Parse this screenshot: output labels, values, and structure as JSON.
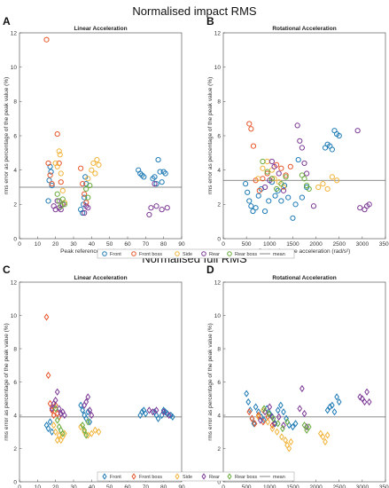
{
  "titles": {
    "impact": "Normalised impact RMS",
    "full": "Normalised full RMS"
  },
  "colors": {
    "Front": "#1f7bb5",
    "Front boss": "#e8562a",
    "Side": "#f2b43a",
    "Rear": "#7c3a96",
    "Rear boss": "#6aab3c",
    "mean": "#666666"
  },
  "chart_data": [
    {
      "letter": "A",
      "title": "Linear Acceleration",
      "type": "scatter",
      "marker": "circle",
      "xlabel": "Peak reference acceleration (g)",
      "ylabel": "rms error as percentage of the peak value (%)",
      "xlim": [
        0,
        90
      ],
      "ylim": [
        0,
        12
      ],
      "xticks": [
        "0",
        "10",
        "20",
        "30",
        "40",
        "50",
        "60",
        "70",
        "80",
        "90"
      ],
      "yticks": [
        "0",
        "2",
        "4",
        "6",
        "8",
        "10",
        "12"
      ],
      "mean": 3.0,
      "series": [
        {
          "name": "Front",
          "x": [
            16,
            16.5,
            17,
            17.5,
            18,
            34,
            35,
            35.5,
            36,
            36.5,
            37,
            66,
            67,
            68,
            69,
            74,
            75,
            76,
            77,
            78,
            79,
            80,
            81
          ],
          "y": [
            2.2,
            3.4,
            4.2,
            3.9,
            3.1,
            1.7,
            1.5,
            2.0,
            2.4,
            3.6,
            3.2,
            4.0,
            3.8,
            3.7,
            3.6,
            3.5,
            3.6,
            3.2,
            4.6,
            3.9,
            3.3,
            3.9,
            3.8
          ]
        },
        {
          "name": "Front boss",
          "x": [
            15,
            16,
            17,
            18,
            21,
            22,
            23,
            34,
            35,
            36,
            37
          ],
          "y": [
            11.6,
            4.4,
            3.7,
            3.2,
            6.1,
            4.4,
            3.3,
            4.1,
            3.2,
            2.6,
            2.1
          ]
        },
        {
          "name": "Side",
          "x": [
            20,
            21,
            22,
            22.5,
            23,
            24,
            25,
            38,
            40,
            41,
            42,
            43,
            44
          ],
          "y": [
            4.4,
            4.2,
            5.1,
            4.9,
            3.8,
            2.8,
            2.1,
            3.5,
            4.0,
            4.4,
            3.8,
            4.6,
            4.3
          ]
        },
        {
          "name": "Rear",
          "x": [
            19,
            20,
            21,
            22,
            23,
            24,
            36,
            37,
            38,
            72,
            73,
            75,
            76,
            79,
            82
          ],
          "y": [
            1.9,
            1.7,
            2.2,
            1.8,
            1.7,
            2.0,
            1.5,
            1.9,
            1.8,
            1.4,
            1.8,
            3.2,
            1.9,
            1.7,
            1.8
          ]
        },
        {
          "name": "Rear boss",
          "x": [
            21,
            22,
            23,
            24,
            25,
            37,
            38,
            39
          ],
          "y": [
            2.6,
            2.2,
            1.9,
            2.3,
            2.0,
            2.9,
            2.4,
            3.1
          ]
        }
      ]
    },
    {
      "letter": "B",
      "title": "Rotational Acceleration",
      "type": "scatter",
      "marker": "circle",
      "xlabel": "Peak reference acceleration (rad/s²)",
      "ylabel": "rms error as percentage of the peak value (%)",
      "xlim": [
        0,
        3500
      ],
      "ylim": [
        0,
        12
      ],
      "xticks": [
        "0",
        "500",
        "1000",
        "1500",
        "2000",
        "2500",
        "3000",
        "3500"
      ],
      "yticks": [
        "0",
        "2",
        "4",
        "6",
        "8",
        "10",
        "12"
      ],
      "mean": 3.4,
      "series": [
        {
          "name": "Front",
          "x": [
            480,
            520,
            560,
            600,
            640,
            700,
            760,
            820,
            900,
            980,
            1050,
            1120,
            1180,
            1250,
            1320,
            1400,
            1500,
            1560,
            1620,
            1700,
            1800,
            2200,
            2250,
            2300,
            2350,
            2400,
            2450,
            2500
          ],
          "y": [
            3.2,
            2.7,
            2.2,
            1.9,
            1.6,
            1.8,
            2.5,
            2.9,
            1.6,
            2.2,
            3.3,
            2.5,
            2.8,
            2.2,
            3.1,
            2.4,
            1.2,
            2.0,
            4.6,
            2.4,
            3.0,
            5.3,
            5.5,
            5.4,
            5.2,
            6.3,
            6.1,
            6.0
          ]
        },
        {
          "name": "Front boss",
          "x": [
            560,
            600,
            650,
            700,
            780,
            850,
            950,
            1050,
            1150,
            1250,
            1350,
            1450
          ],
          "y": [
            6.7,
            6.4,
            5.4,
            3.4,
            2.8,
            3.5,
            3.8,
            3.5,
            4.3,
            4.1,
            3.7,
            4.2
          ]
        },
        {
          "name": "Side",
          "x": [
            750,
            850,
            950,
            1050,
            1100,
            1200,
            1300,
            2050,
            2150,
            2250,
            2350,
            2450
          ],
          "y": [
            3.5,
            4.1,
            4.5,
            4.0,
            3.5,
            3.3,
            3.0,
            3.0,
            3.2,
            2.9,
            3.6,
            3.4
          ]
        },
        {
          "name": "Rear",
          "x": [
            900,
            1000,
            1050,
            1100,
            1200,
            1300,
            1600,
            1650,
            1700,
            1750,
            1800,
            1950,
            2900,
            2950,
            3050,
            3100,
            3150
          ],
          "y": [
            3.0,
            3.4,
            4.5,
            4.2,
            3.8,
            2.8,
            6.6,
            5.7,
            5.3,
            4.4,
            3.8,
            1.9,
            6.3,
            1.8,
            1.7,
            1.9,
            2.0
          ]
        },
        {
          "name": "Rear boss",
          "x": [
            850,
            950,
            1050,
            1150,
            1250,
            1350,
            1700,
            1750,
            1800,
            1850
          ],
          "y": [
            4.5,
            3.9,
            3.5,
            2.9,
            3.2,
            3.6,
            3.7,
            3.5,
            3.1,
            2.9
          ]
        }
      ]
    },
    {
      "letter": "C",
      "title": "Linear Acceleration",
      "type": "scatter",
      "marker": "diamond",
      "xlabel": "Peak reference acceleration (g)",
      "ylabel": "rms error as percentage of the peak value (%)",
      "xlim": [
        0,
        90
      ],
      "ylim": [
        0,
        12
      ],
      "xticks": [
        "0",
        "10",
        "20",
        "30",
        "40",
        "50",
        "60",
        "70",
        "80",
        "90"
      ],
      "yticks": [
        "0",
        "2",
        "4",
        "6",
        "8",
        "10",
        "12"
      ],
      "mean": 3.9,
      "series": [
        {
          "name": "Front",
          "x": [
            15,
            16,
            17,
            18,
            34,
            35,
            36,
            37,
            38,
            39,
            67,
            68,
            69,
            70,
            75,
            76,
            77,
            79,
            80,
            81,
            82,
            84,
            85
          ],
          "y": [
            3.4,
            3.2,
            3.6,
            3.0,
            4.6,
            4.3,
            4.0,
            3.8,
            4.2,
            3.6,
            4.0,
            4.2,
            4.3,
            4.1,
            4.2,
            4.0,
            3.8,
            4.0,
            4.3,
            4.2,
            4.1,
            4.0,
            3.9
          ]
        },
        {
          "name": "Front boss",
          "x": [
            15,
            16,
            17,
            18,
            19,
            20,
            21,
            22
          ],
          "y": [
            9.9,
            6.4,
            4.7,
            4.3,
            4.0,
            4.6,
            4.1,
            3.9
          ]
        },
        {
          "name": "Side",
          "x": [
            19,
            20,
            21,
            22,
            23,
            24,
            25,
            34,
            36,
            38,
            40,
            42,
            44
          ],
          "y": [
            3.4,
            3.0,
            2.5,
            2.8,
            2.5,
            2.7,
            2.9,
            3.3,
            3.0,
            2.8,
            2.9,
            3.1,
            3.0
          ]
        },
        {
          "name": "Rear",
          "x": [
            18,
            19,
            20,
            21,
            22,
            23,
            24,
            25,
            36,
            37,
            38,
            39,
            40,
            72,
            74,
            76,
            80,
            83
          ],
          "y": [
            4.4,
            4.7,
            4.9,
            5.4,
            4.4,
            4.1,
            4.2,
            4.0,
            4.6,
            4.8,
            5.1,
            4.3,
            4.0,
            4.3,
            4.2,
            4.3,
            4.2,
            4.0
          ]
        },
        {
          "name": "Rear boss",
          "x": [
            20,
            21,
            22,
            23,
            24,
            35,
            36,
            37,
            38
          ],
          "y": [
            4.4,
            3.7,
            3.3,
            3.1,
            2.9,
            3.4,
            3.1,
            2.8,
            3.6
          ]
        }
      ]
    },
    {
      "letter": "D",
      "title": "Rotational Acceleration",
      "type": "scatter",
      "marker": "diamond",
      "xlabel": "Peak reference acceleration (rad/s²)",
      "ylabel": "rms error as percentage of the peak value (%)",
      "xlim": [
        0,
        3500
      ],
      "ylim": [
        0,
        12
      ],
      "xticks": [
        "0",
        "500",
        "1000",
        "1500",
        "2000",
        "2500",
        "3000",
        "3500"
      ],
      "yticks": [
        "0",
        "2",
        "4",
        "6",
        "8",
        "10",
        "12"
      ],
      "mean": 3.9,
      "series": [
        {
          "name": "Front",
          "x": [
            500,
            540,
            580,
            620,
            660,
            700,
            760,
            820,
            880,
            940,
            1000,
            1060,
            1120,
            1180,
            1240,
            1300,
            1360,
            1420,
            1500,
            1560,
            2250,
            2300,
            2350,
            2400,
            2450,
            2500
          ],
          "y": [
            5.3,
            4.8,
            4.3,
            3.8,
            3.5,
            4.5,
            4.2,
            3.9,
            3.7,
            4.4,
            4.1,
            3.9,
            3.5,
            4.3,
            4.6,
            4.2,
            3.8,
            3.4,
            3.3,
            3.5,
            4.3,
            4.5,
            4.6,
            4.2,
            5.1,
            4.8
          ]
        },
        {
          "name": "Front boss",
          "x": [
            560,
            620,
            680,
            760,
            860,
            960,
            1060
          ],
          "y": [
            4.2,
            3.8,
            3.5,
            4.0,
            3.6,
            3.9,
            3.4
          ]
        },
        {
          "name": "Side",
          "x": [
            760,
            860,
            960,
            1060,
            1160,
            1260,
            1340,
            1380,
            1420,
            1460,
            2100,
            2150,
            2200,
            2250
          ],
          "y": [
            3.9,
            4.3,
            3.6,
            3.2,
            3.0,
            2.7,
            2.5,
            2.2,
            2.0,
            2.4,
            2.9,
            2.7,
            2.4,
            2.8
          ]
        },
        {
          "name": "Rear",
          "x": [
            800,
            900,
            1000,
            1050,
            1100,
            1200,
            1300,
            1650,
            1700,
            1750,
            1800,
            2950,
            3000,
            3050,
            3100,
            3150
          ],
          "y": [
            3.7,
            4.2,
            4.5,
            3.9,
            3.5,
            3.9,
            3.4,
            4.4,
            5.6,
            4.1,
            3.3,
            5.1,
            5.0,
            4.8,
            5.4,
            4.8
          ]
        },
        {
          "name": "Rear boss",
          "x": [
            880,
            980,
            1080,
            1180,
            1280,
            1380,
            1750,
            1800,
            1850
          ],
          "y": [
            4.4,
            4.1,
            3.8,
            3.5,
            3.2,
            3.6,
            3.4,
            3.1,
            3.3
          ]
        }
      ]
    }
  ],
  "legend": {
    "items": [
      "Front",
      "Front boss",
      "Side",
      "Rear",
      "Rear boss",
      "mean"
    ]
  }
}
